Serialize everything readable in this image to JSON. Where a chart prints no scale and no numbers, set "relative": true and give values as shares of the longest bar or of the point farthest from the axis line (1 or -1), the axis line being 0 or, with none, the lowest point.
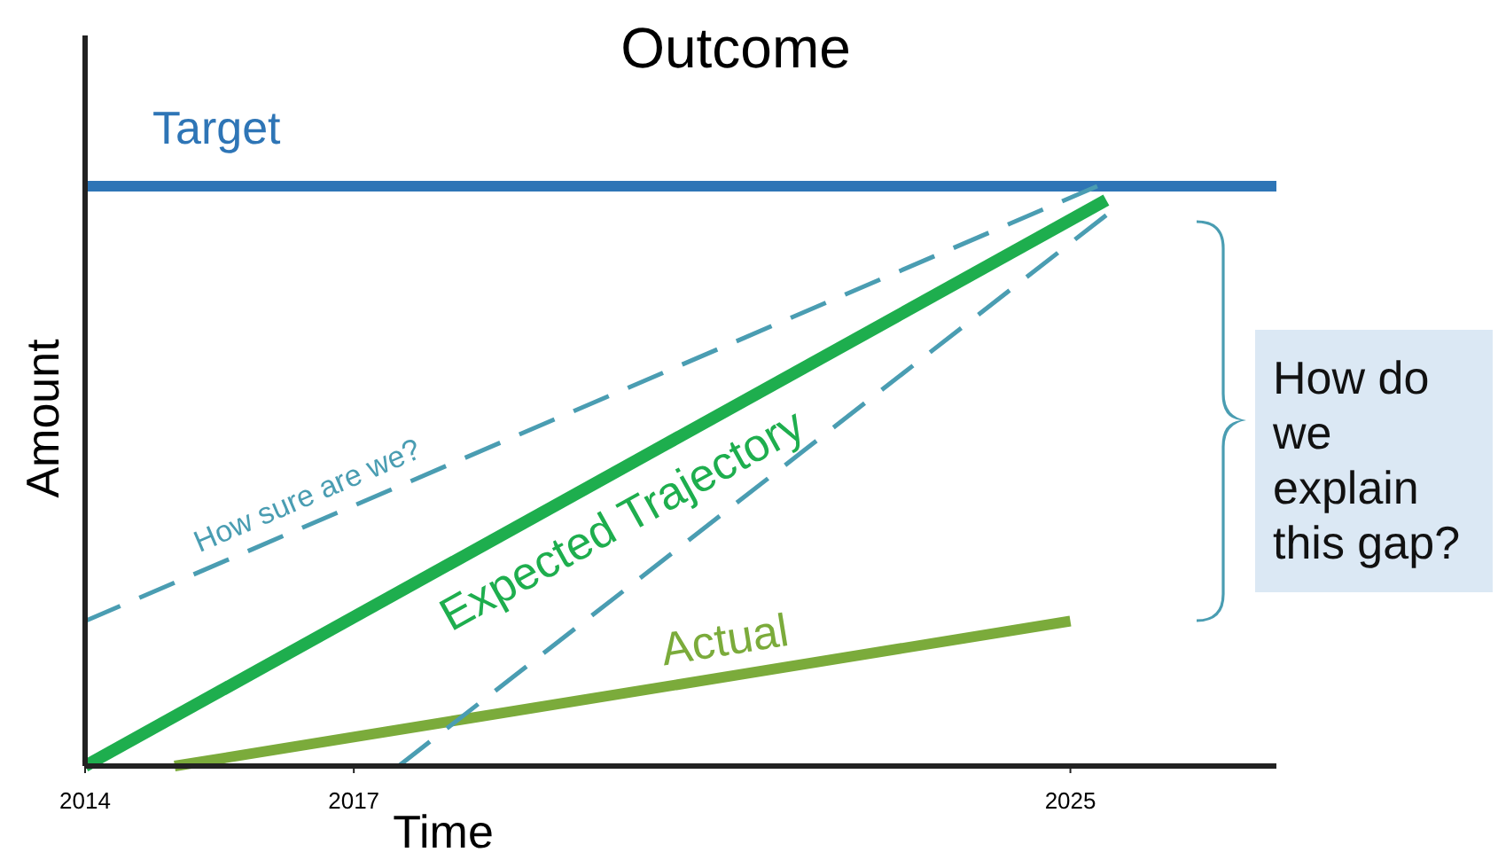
{
  "chart_data": {
    "type": "line",
    "title": "Outcome",
    "xlabel": "Time",
    "ylabel": "Amount",
    "relative": true,
    "xlim": [
      2014,
      2027.3
    ],
    "xticks": [
      2014,
      2017,
      2025
    ],
    "grid": false,
    "legend": false,
    "series": [
      {
        "name": "Expected Trajectory",
        "color": "#1eae4e",
        "line_style": "solid",
        "x": [
          2014,
          2025.4
        ],
        "values": [
          0,
          0.976
        ]
      },
      {
        "name": "Actual",
        "color": "#7bab3b",
        "line_style": "solid",
        "x": [
          2015,
          2025
        ],
        "values": [
          0,
          0.25
        ]
      },
      {
        "name": "How sure are we?",
        "color": "#4a9db2",
        "line_style": "dashed",
        "x": [
          2014,
          2025.3
        ],
        "values": [
          0.25,
          1
        ]
      },
      {
        "color": "#4a9db2",
        "line_style": "dashed",
        "x": [
          2017.5,
          2025.4
        ],
        "values": [
          0,
          0.95
        ]
      }
    ],
    "ref_lines": [
      {
        "axis": "y",
        "value": 1,
        "label": "Target",
        "color": "#2e75b6",
        "line_style": "solid"
      }
    ],
    "annotations": [
      "How do we explain this gap?"
    ]
  }
}
